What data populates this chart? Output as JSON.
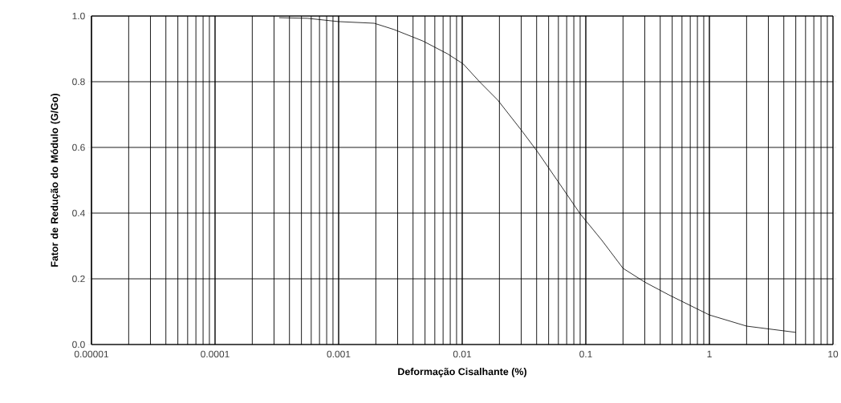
{
  "chart_data": {
    "type": "line",
    "xlabel": "Deformação Cisalhante (%)",
    "ylabel": "Fator de Redução do Módulo (G/Go)",
    "x": [
      0.00033,
      0.00056,
      0.001,
      0.00194,
      0.0028,
      0.0048,
      0.0076,
      0.0102,
      0.0138,
      0.0194,
      0.0303,
      0.041,
      0.063,
      0.09,
      0.135,
      0.2,
      0.3,
      0.47,
      1.0,
      2.0,
      5.0
    ],
    "series": [
      {
        "color": "#000000",
        "values": [
          0.995,
          0.993,
          0.983,
          0.978,
          0.959,
          0.924,
          0.885,
          0.854,
          0.8,
          0.744,
          0.651,
          0.585,
          0.483,
          0.398,
          0.317,
          0.232,
          0.19,
          0.151,
          0.09,
          0.056,
          0.037
        ]
      }
    ],
    "log": "x",
    "xlim": [
      1e-05,
      10
    ],
    "ylim": [
      0,
      1
    ],
    "xticks": [
      {
        "value": 1e-05,
        "label": "0.00001"
      },
      {
        "value": 0.0001,
        "label": "0.0001"
      },
      {
        "value": 0.001,
        "label": "0.001"
      },
      {
        "value": 0.01,
        "label": "0.01"
      },
      {
        "value": 0.1,
        "label": "0.1"
      },
      1,
      10
    ],
    "yticks": [
      {
        "value": 0,
        "label": "0.0"
      },
      0.2,
      0.4,
      0.6,
      0.8,
      {
        "value": 1,
        "label": "1.0"
      }
    ],
    "grid": true,
    "marker": "none",
    "line_style": "solid"
  }
}
